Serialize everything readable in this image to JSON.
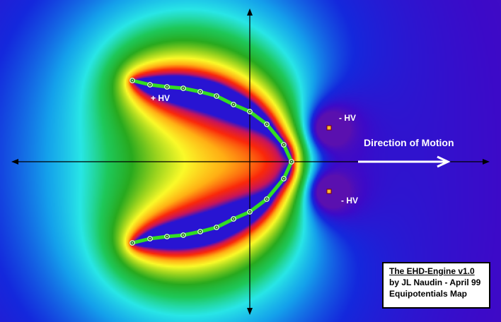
{
  "labels": {
    "positive_electrode": "+ HV",
    "negative_electrode_top": "- HV",
    "negative_electrode_bottom": "- HV",
    "motion": "Direction of Motion"
  },
  "caption": {
    "line1": "The EHD-Engine v1.0",
    "line2": "by JL Naudin - April 99",
    "line3": "Equipotentials Map"
  },
  "colors": {
    "background_far": "#5b10b0",
    "electrode_wire": "#33dd22",
    "electrode_node": "#ccffcc",
    "negative_electrode": "#ffbb33",
    "axes": "#000000",
    "motion_arrow": "#ffffff"
  },
  "electrode_nodes": 10
}
